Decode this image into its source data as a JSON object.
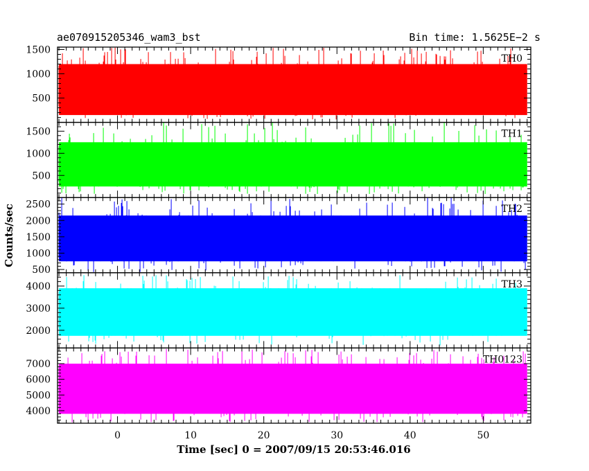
{
  "header": {
    "title": "ae070915205346_wam3_bst",
    "bin_time": "Bin time: 1.5625E−2 s"
  },
  "axes": {
    "ylabel": "Counts/sec",
    "xlabel": "Time [sec] 0 = 2007/09/15 20:53:46.016"
  },
  "chart_data": {
    "type": "line",
    "xlim": [
      -8.2,
      56.5
    ],
    "x_ticks": [
      0,
      10,
      20,
      30,
      40,
      50
    ],
    "panels": [
      {
        "name": "TH0",
        "color": "#ff0000",
        "ylim": [
          0,
          1550
        ],
        "y_ticks": [
          500,
          1000,
          1500
        ],
        "y_minor": [
          100,
          200,
          300,
          400,
          600,
          700,
          800,
          900,
          1100,
          1200,
          1300,
          1400
        ],
        "band": [
          150,
          1200
        ],
        "spike_range": [
          60,
          1540
        ],
        "typical_low": 300,
        "typical_high": 1100
      },
      {
        "name": "TH1",
        "color": "#00ff00",
        "ylim": [
          0,
          1700
        ],
        "y_ticks": [
          500,
          1000,
          1500
        ],
        "y_minor": [
          100,
          200,
          300,
          400,
          600,
          700,
          800,
          900,
          1100,
          1200,
          1300,
          1400,
          1600
        ],
        "band": [
          250,
          1250
        ],
        "spike_range": [
          80,
          1700
        ],
        "typical_low": 350,
        "typical_high": 1150
      },
      {
        "name": "TH2",
        "color": "#0000ff",
        "ylim": [
          400,
          2700
        ],
        "y_ticks": [
          500,
          1000,
          1500,
          2000,
          2500
        ],
        "y_minor": [
          600,
          700,
          800,
          900,
          1100,
          1200,
          1300,
          1400,
          1600,
          1700,
          1800,
          1900,
          2100,
          2200,
          2300,
          2400,
          2600
        ],
        "band": [
          750,
          2150
        ],
        "spike_range": [
          420,
          2700
        ],
        "typical_low": 900,
        "typical_high": 2000
      },
      {
        "name": "TH3",
        "color": "#00ffff",
        "ylim": [
          1200,
          4600
        ],
        "y_ticks": [
          2000,
          3000,
          4000
        ],
        "y_minor": [
          1400,
          1600,
          1800,
          2200,
          2400,
          2600,
          2800,
          3200,
          3400,
          3600,
          3800,
          4200,
          4400
        ],
        "band": [
          1750,
          3900
        ],
        "spike_range": [
          1300,
          4500
        ],
        "typical_low": 2100,
        "typical_high": 3700
      },
      {
        "name": "TH0123",
        "color": "#ff00ff",
        "ylim": [
          3200,
          8000
        ],
        "y_ticks": [
          4000,
          5000,
          6000,
          7000
        ],
        "y_minor": [
          3400,
          3600,
          3800,
          4200,
          4400,
          4600,
          4800,
          5200,
          5400,
          5600,
          5800,
          6200,
          6400,
          6600,
          6800,
          7200,
          7400,
          7600,
          7800
        ],
        "band": [
          3800,
          7000
        ],
        "spike_range": [
          3250,
          7950
        ],
        "typical_low": 4200,
        "typical_high": 6700
      }
    ]
  }
}
